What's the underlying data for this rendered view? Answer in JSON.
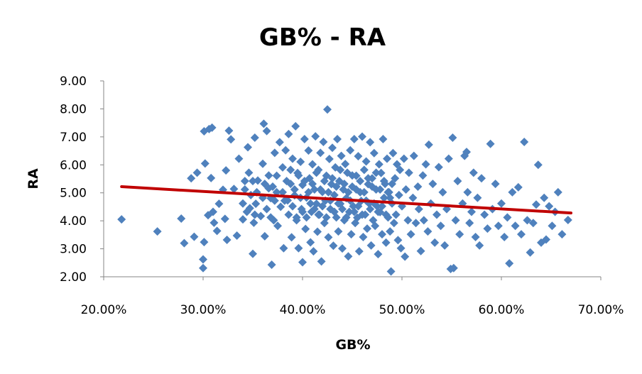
{
  "chart_data": {
    "type": "scatter",
    "title": "GB% - RA",
    "xlabel": "GB%",
    "ylabel": "RA",
    "xlim": [
      0.2,
      0.7
    ],
    "ylim": [
      2.0,
      9.0
    ],
    "x_ticks": [
      "20.00%",
      "30.00%",
      "40.00%",
      "50.00%",
      "60.00%",
      "70.00%"
    ],
    "y_ticks": [
      "2.00",
      "3.00",
      "4.00",
      "5.00",
      "6.00",
      "7.00",
      "8.00",
      "9.00"
    ],
    "grid": false,
    "legend": "none",
    "marker_color": "#4F81BD",
    "trendline_color": "#C00000",
    "trendline": {
      "x": [
        0.218,
        0.67
      ],
      "y": [
        5.22,
        4.28
      ]
    },
    "series": [
      {
        "values": [
          [
            0.218,
            4.05
          ],
          [
            0.254,
            3.62
          ],
          [
            0.278,
            4.08
          ],
          [
            0.281,
            3.2
          ],
          [
            0.288,
            5.52
          ],
          [
            0.291,
            3.43
          ],
          [
            0.294,
            5.72
          ],
          [
            0.3,
            2.62
          ],
          [
            0.3,
            2.31
          ],
          [
            0.301,
            7.2
          ],
          [
            0.301,
            3.24
          ],
          [
            0.302,
            6.05
          ],
          [
            0.305,
            4.2
          ],
          [
            0.306,
            7.28
          ],
          [
            0.308,
            5.53
          ],
          [
            0.309,
            7.33
          ],
          [
            0.31,
            4.32
          ],
          [
            0.311,
            3.93
          ],
          [
            0.314,
            3.64
          ],
          [
            0.316,
            4.61
          ],
          [
            0.32,
            5.11
          ],
          [
            0.322,
            4.07
          ],
          [
            0.323,
            5.8
          ],
          [
            0.324,
            3.32
          ],
          [
            0.326,
            7.22
          ],
          [
            0.328,
            6.91
          ],
          [
            0.331,
            5.14
          ],
          [
            0.334,
            3.47
          ],
          [
            0.336,
            6.22
          ],
          [
            0.34,
            4.05
          ],
          [
            0.342,
            5.42
          ],
          [
            0.345,
            6.63
          ],
          [
            0.347,
            4.45
          ],
          [
            0.35,
            2.82
          ],
          [
            0.351,
            3.93
          ],
          [
            0.352,
            6.97
          ],
          [
            0.353,
            4.61
          ],
          [
            0.355,
            5.44
          ],
          [
            0.358,
            4.17
          ],
          [
            0.36,
            6.04
          ],
          [
            0.361,
            7.47
          ],
          [
            0.362,
            3.45
          ],
          [
            0.364,
            7.21
          ],
          [
            0.366,
            5.16
          ],
          [
            0.368,
            4.81
          ],
          [
            0.369,
            2.43
          ],
          [
            0.371,
            4.02
          ],
          [
            0.372,
            6.43
          ],
          [
            0.374,
            5.61
          ],
          [
            0.375,
            3.82
          ],
          [
            0.377,
            6.81
          ],
          [
            0.378,
            4.5
          ],
          [
            0.38,
            5.91
          ],
          [
            0.381,
            3.02
          ],
          [
            0.383,
            6.52
          ],
          [
            0.385,
            4.73
          ],
          [
            0.386,
            7.1
          ],
          [
            0.388,
            5.32
          ],
          [
            0.389,
            3.41
          ],
          [
            0.39,
            6.22
          ],
          [
            0.392,
            4.91
          ],
          [
            0.393,
            7.38
          ],
          [
            0.394,
            4.12
          ],
          [
            0.395,
            5.71
          ],
          [
            0.396,
            3.02
          ],
          [
            0.398,
            6.11
          ],
          [
            0.399,
            4.42
          ],
          [
            0.4,
            2.52
          ],
          [
            0.4,
            5.28
          ],
          [
            0.402,
            6.92
          ],
          [
            0.403,
            3.71
          ],
          [
            0.404,
            4.83
          ],
          [
            0.406,
            6.51
          ],
          [
            0.407,
            5.52
          ],
          [
            0.408,
            3.23
          ],
          [
            0.409,
            4.32
          ],
          [
            0.41,
            6.02
          ],
          [
            0.411,
            2.91
          ],
          [
            0.412,
            5.12
          ],
          [
            0.413,
            7.02
          ],
          [
            0.414,
            4.61
          ],
          [
            0.415,
            3.61
          ],
          [
            0.416,
            5.82
          ],
          [
            0.417,
            4.22
          ],
          [
            0.418,
            6.43
          ],
          [
            0.419,
            2.55
          ],
          [
            0.42,
            5.03
          ],
          [
            0.421,
            6.82
          ],
          [
            0.422,
            3.92
          ],
          [
            0.423,
            4.72
          ],
          [
            0.424,
            5.61
          ],
          [
            0.425,
            7.98
          ],
          [
            0.426,
            3.41
          ],
          [
            0.427,
            6.21
          ],
          [
            0.428,
            4.42
          ],
          [
            0.429,
            5.31
          ],
          [
            0.43,
            6.61
          ],
          [
            0.431,
            3.11
          ],
          [
            0.432,
            4.92
          ],
          [
            0.433,
            5.91
          ],
          [
            0.434,
            4.12
          ],
          [
            0.435,
            6.92
          ],
          [
            0.436,
            3.62
          ],
          [
            0.437,
            5.42
          ],
          [
            0.438,
            4.61
          ],
          [
            0.439,
            6.32
          ],
          [
            0.44,
            3.01
          ],
          [
            0.441,
            5.12
          ],
          [
            0.442,
            4.02
          ],
          [
            0.443,
            6.03
          ],
          [
            0.444,
            4.81
          ],
          [
            0.445,
            5.72
          ],
          [
            0.446,
            2.73
          ],
          [
            0.447,
            4.32
          ],
          [
            0.448,
            6.52
          ],
          [
            0.449,
            3.52
          ],
          [
            0.45,
            5.22
          ],
          [
            0.451,
            4.52
          ],
          [
            0.452,
            6.92
          ],
          [
            0.453,
            3.92
          ],
          [
            0.454,
            5.61
          ],
          [
            0.455,
            4.11
          ],
          [
            0.456,
            6.31
          ],
          [
            0.457,
            2.91
          ],
          [
            0.458,
            5.02
          ],
          [
            0.459,
            4.71
          ],
          [
            0.46,
            7.01
          ],
          [
            0.461,
            3.42
          ],
          [
            0.462,
            5.82
          ],
          [
            0.463,
            4.22
          ],
          [
            0.464,
            6.12
          ],
          [
            0.465,
            3.72
          ],
          [
            0.466,
            5.31
          ],
          [
            0.467,
            4.62
          ],
          [
            0.468,
            6.81
          ],
          [
            0.469,
            3.12
          ],
          [
            0.47,
            5.52
          ],
          [
            0.471,
            4.02
          ],
          [
            0.472,
            6.42
          ],
          [
            0.473,
            3.82
          ],
          [
            0.474,
            5.12
          ],
          [
            0.475,
            4.52
          ],
          [
            0.476,
            2.81
          ],
          [
            0.477,
            6.02
          ],
          [
            0.478,
            4.31
          ],
          [
            0.479,
            5.71
          ],
          [
            0.48,
            3.52
          ],
          [
            0.481,
            6.92
          ],
          [
            0.482,
            4.82
          ],
          [
            0.483,
            5.32
          ],
          [
            0.484,
            3.22
          ],
          [
            0.485,
            6.22
          ],
          [
            0.486,
            4.12
          ],
          [
            0.487,
            5.02
          ],
          [
            0.488,
            3.62
          ],
          [
            0.489,
            2.19
          ],
          [
            0.49,
            4.62
          ],
          [
            0.491,
            6.42
          ],
          [
            0.492,
            3.92
          ],
          [
            0.493,
            5.52
          ],
          [
            0.494,
            4.22
          ],
          [
            0.495,
            6.02
          ],
          [
            0.496,
            3.31
          ],
          [
            0.497,
            4.92
          ],
          [
            0.498,
            5.82
          ],
          [
            0.499,
            3.02
          ],
          [
            0.5,
            4.52
          ],
          [
            0.502,
            6.22
          ],
          [
            0.503,
            2.72
          ],
          [
            0.504,
            5.12
          ],
          [
            0.506,
            4.02
          ],
          [
            0.507,
            5.72
          ],
          [
            0.509,
            3.52
          ],
          [
            0.511,
            4.82
          ],
          [
            0.512,
            6.32
          ],
          [
            0.514,
            3.92
          ],
          [
            0.516,
            5.22
          ],
          [
            0.517,
            4.42
          ],
          [
            0.519,
            2.92
          ],
          [
            0.521,
            5.62
          ],
          [
            0.522,
            4.02
          ],
          [
            0.524,
            6.02
          ],
          [
            0.526,
            3.62
          ],
          [
            0.527,
            6.72
          ],
          [
            0.529,
            4.62
          ],
          [
            0.531,
            5.32
          ],
          [
            0.533,
            3.22
          ],
          [
            0.535,
            4.22
          ],
          [
            0.537,
            5.92
          ],
          [
            0.539,
            3.82
          ],
          [
            0.541,
            5.02
          ],
          [
            0.543,
            3.12
          ],
          [
            0.545,
            4.42
          ],
          [
            0.547,
            6.22
          ],
          [
            0.549,
            2.28
          ],
          [
            0.551,
            6.97
          ],
          [
            0.552,
            2.31
          ],
          [
            0.554,
            4.02
          ],
          [
            0.556,
            5.42
          ],
          [
            0.558,
            3.52
          ],
          [
            0.561,
            4.62
          ],
          [
            0.563,
            6.32
          ],
          [
            0.565,
            6.46
          ],
          [
            0.566,
            5.02
          ],
          [
            0.568,
            3.92
          ],
          [
            0.57,
            4.32
          ],
          [
            0.572,
            5.72
          ],
          [
            0.574,
            3.42
          ],
          [
            0.576,
            4.82
          ],
          [
            0.578,
            3.12
          ],
          [
            0.58,
            5.52
          ],
          [
            0.583,
            4.22
          ],
          [
            0.586,
            3.72
          ],
          [
            0.589,
            6.75
          ],
          [
            0.591,
            4.42
          ],
          [
            0.594,
            5.32
          ],
          [
            0.597,
            3.82
          ],
          [
            0.6,
            4.62
          ],
          [
            0.603,
            3.42
          ],
          [
            0.606,
            4.12
          ],
          [
            0.608,
            2.48
          ],
          [
            0.611,
            5.02
          ],
          [
            0.614,
            3.82
          ],
          [
            0.617,
            5.2
          ],
          [
            0.62,
            3.52
          ],
          [
            0.623,
            6.82
          ],
          [
            0.626,
            4.02
          ],
          [
            0.629,
            2.87
          ],
          [
            0.632,
            3.92
          ],
          [
            0.635,
            4.58
          ],
          [
            0.637,
            6.0
          ],
          [
            0.64,
            3.22
          ],
          [
            0.643,
            4.82
          ],
          [
            0.645,
            3.33
          ],
          [
            0.648,
            4.52
          ],
          [
            0.651,
            3.82
          ],
          [
            0.654,
            4.32
          ],
          [
            0.657,
            5.02
          ],
          [
            0.661,
            3.52
          ],
          [
            0.667,
            4.03
          ],
          [
            0.38,
            5.02
          ],
          [
            0.382,
            4.72
          ],
          [
            0.384,
            5.42
          ],
          [
            0.386,
            4.22
          ],
          [
            0.388,
            5.82
          ],
          [
            0.39,
            4.52
          ],
          [
            0.392,
            5.12
          ],
          [
            0.394,
            4.02
          ],
          [
            0.396,
            5.62
          ],
          [
            0.398,
            4.82
          ],
          [
            0.4,
            4.32
          ],
          [
            0.402,
            5.42
          ],
          [
            0.404,
            4.12
          ],
          [
            0.406,
            5.02
          ],
          [
            0.408,
            4.62
          ],
          [
            0.41,
            5.32
          ],
          [
            0.412,
            4.42
          ],
          [
            0.414,
            5.72
          ],
          [
            0.416,
            4.22
          ],
          [
            0.418,
            5.12
          ],
          [
            0.42,
            4.52
          ],
          [
            0.422,
            5.42
          ],
          [
            0.424,
            4.12
          ],
          [
            0.426,
            5.02
          ],
          [
            0.428,
            4.72
          ],
          [
            0.43,
            5.52
          ],
          [
            0.432,
            4.32
          ],
          [
            0.434,
            5.22
          ],
          [
            0.436,
            4.62
          ],
          [
            0.438,
            5.82
          ],
          [
            0.44,
            4.42
          ],
          [
            0.442,
            5.32
          ],
          [
            0.444,
            4.12
          ],
          [
            0.446,
            5.02
          ],
          [
            0.448,
            4.72
          ],
          [
            0.45,
            5.62
          ],
          [
            0.452,
            4.32
          ],
          [
            0.454,
            5.12
          ],
          [
            0.456,
            4.52
          ],
          [
            0.458,
            5.42
          ],
          [
            0.46,
            4.22
          ],
          [
            0.462,
            5.02
          ],
          [
            0.464,
            4.72
          ],
          [
            0.466,
            5.52
          ],
          [
            0.468,
            4.42
          ],
          [
            0.47,
            5.22
          ],
          [
            0.472,
            4.62
          ],
          [
            0.474,
            5.72
          ],
          [
            0.476,
            4.32
          ],
          [
            0.478,
            5.12
          ],
          [
            0.48,
            4.52
          ],
          [
            0.482,
            5.42
          ],
          [
            0.484,
            4.22
          ],
          [
            0.486,
            5.02
          ],
          [
            0.488,
            4.82
          ],
          [
            0.49,
            5.32
          ],
          [
            0.36,
            4.82
          ],
          [
            0.362,
            5.32
          ],
          [
            0.364,
            4.42
          ],
          [
            0.366,
            5.62
          ],
          [
            0.368,
            4.12
          ],
          [
            0.37,
            5.22
          ],
          [
            0.372,
            4.72
          ],
          [
            0.374,
            5.02
          ],
          [
            0.34,
            4.62
          ],
          [
            0.342,
            5.12
          ],
          [
            0.344,
            4.32
          ],
          [
            0.346,
            5.72
          ],
          [
            0.348,
            4.92
          ],
          [
            0.35,
            5.42
          ],
          [
            0.352,
            4.22
          ],
          [
            0.354,
            5.02
          ]
        ]
      }
    ]
  }
}
